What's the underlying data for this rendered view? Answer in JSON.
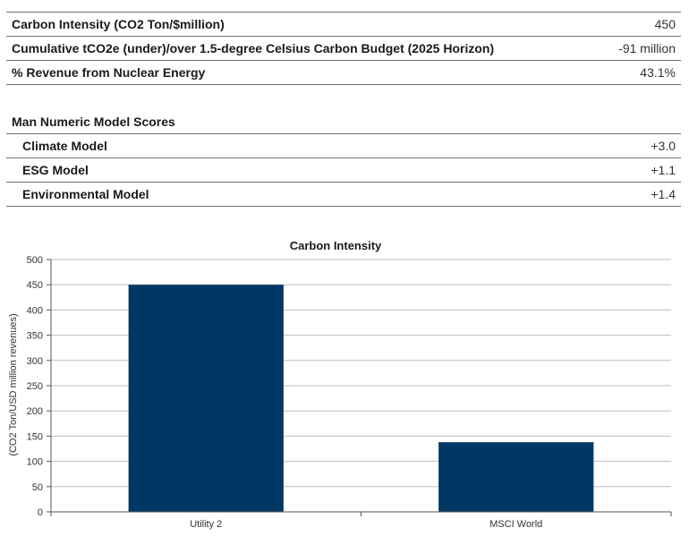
{
  "metrics": [
    {
      "label": "Carbon Intensity (CO2 Ton/$million)",
      "value": "450"
    },
    {
      "label": "Cumulative tCO2e (under)/over 1.5-degree Celsius Carbon Budget (2025 Horizon)",
      "value": "-91 million"
    },
    {
      "label": "% Revenue from Nuclear Energy",
      "value": "43.1%"
    }
  ],
  "scores": {
    "title": "Man Numeric Model Scores",
    "rows": [
      {
        "label": "Climate Model",
        "value": "+3.0"
      },
      {
        "label": "ESG Model",
        "value": "+1.1"
      },
      {
        "label": "Environmental Model",
        "value": "+1.4"
      }
    ]
  },
  "chart_data": {
    "type": "bar",
    "title": "Carbon Intensity",
    "ylabel": "(CO2 Ton/USD million revenues)",
    "xlabel": "",
    "categories": [
      "Utility 2",
      "MSCI World"
    ],
    "values": [
      450,
      138
    ],
    "ylim": [
      0,
      500
    ],
    "yticks": [
      0,
      50,
      100,
      150,
      200,
      250,
      300,
      350,
      400,
      450,
      500
    ],
    "grid": true,
    "bar_color": "#003865"
  }
}
